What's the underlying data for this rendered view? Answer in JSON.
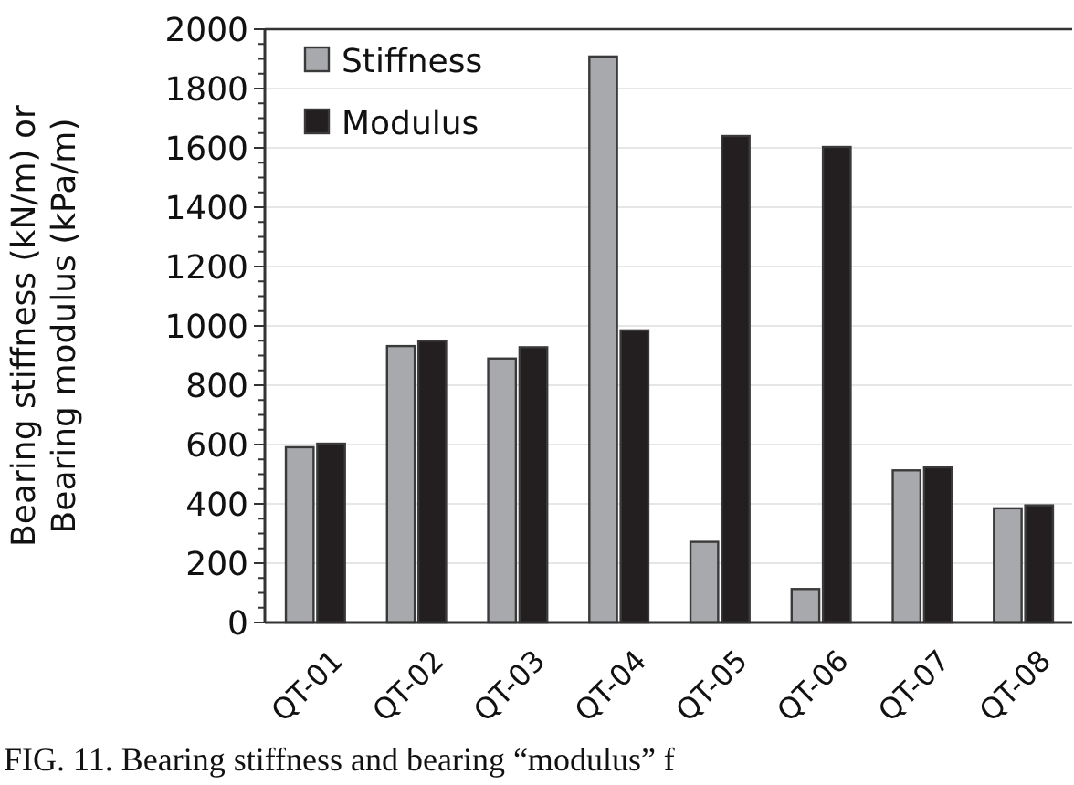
{
  "chart_data": {
    "type": "bar",
    "ylabel": "Bearing stiffness (kN/m) or\nBearing modulus (kPa/m)",
    "categories": [
      "QT-01",
      "QT-02",
      "QT-03",
      "QT-04",
      "QT-05",
      "QT-06",
      "QT-07",
      "QT-08"
    ],
    "series": [
      {
        "name": "Stiffness",
        "color": "#a7a9ac",
        "values": [
          591,
          932,
          890,
          1908,
          272,
          113,
          513,
          385
        ]
      },
      {
        "name": "Modulus",
        "color": "#231f20",
        "values": [
          603,
          950,
          928,
          985,
          1640,
          1603,
          523,
          395
        ]
      }
    ],
    "ylim": [
      0,
      2000
    ],
    "yticks": [
      0,
      {
        "value": 50,
        "label": null
      },
      {
        "value": 100,
        "label": null
      },
      {
        "value": 150,
        "label": null
      },
      200,
      {
        "value": 250,
        "label": null
      },
      {
        "value": 300,
        "label": null
      },
      {
        "value": 350,
        "label": null
      },
      400,
      {
        "value": 450,
        "label": null
      },
      {
        "value": 500,
        "label": null
      },
      {
        "value": 550,
        "label": null
      },
      600,
      {
        "value": 650,
        "label": null
      },
      {
        "value": 700,
        "label": null
      },
      {
        "value": 750,
        "label": null
      },
      800,
      {
        "value": 850,
        "label": null
      },
      {
        "value": 900,
        "label": null
      },
      {
        "value": 950,
        "label": null
      },
      1000,
      {
        "value": 1050,
        "label": null
      },
      {
        "value": 1100,
        "label": null
      },
      {
        "value": 1150,
        "label": null
      },
      1200,
      {
        "value": 1250,
        "label": null
      },
      {
        "value": 1300,
        "label": null
      },
      {
        "value": 1350,
        "label": null
      },
      1400,
      {
        "value": 1450,
        "label": null
      },
      {
        "value": 1500,
        "label": null
      },
      {
        "value": 1550,
        "label": null
      },
      1600,
      {
        "value": 1650,
        "label": null
      },
      {
        "value": 1700,
        "label": null
      },
      {
        "value": 1750,
        "label": null
      },
      1800,
      {
        "value": 1850,
        "label": null
      },
      {
        "value": 1900,
        "label": null
      },
      {
        "value": 1950,
        "label": null
      },
      2000
    ],
    "grid": "y",
    "legend": "top left",
    "annotations": [
      "FIG. 11. Bearing stiffness and bearing “modulus” f"
    ]
  }
}
